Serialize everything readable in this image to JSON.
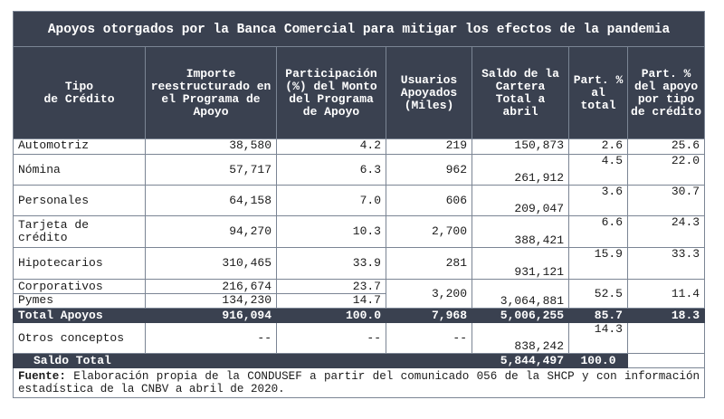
{
  "table": {
    "title": "Apoyos otorgados por la Banca Comercial para mitigar los efectos de la pandemia",
    "headers": {
      "tipo": "Tipo\nde Crédito",
      "importe": "Importe reestructurado en el Programa de Apoyo",
      "participacion": "Participación (%) del Monto del Programa de Apoyo",
      "usuarios": "Usuarios Apoyados (Miles)",
      "saldo": "Saldo de la Cartera Total a abril",
      "part_total": "Part. % al total",
      "part_apoyo": "Part. % del apoyo por tipo de crédito"
    },
    "rows": [
      {
        "tipo": "Automotriz",
        "importe": "38,580",
        "participacion": "4.2",
        "usuarios": "219",
        "saldo": "150,873",
        "part_total": "2.6",
        "part_apoyo": "25.6"
      },
      {
        "tipo": "Nómina",
        "importe": "57,717",
        "participacion": "6.3",
        "usuarios": "962",
        "saldo": "261,912",
        "part_total": "4.5",
        "part_apoyo": "22.0"
      },
      {
        "tipo": "Personales",
        "importe": "64,158",
        "participacion": "7.0",
        "usuarios": "606",
        "saldo": "209,047",
        "part_total": "3.6",
        "part_apoyo": "30.7"
      },
      {
        "tipo": "Tarjeta de crédito",
        "importe": "94,270",
        "participacion": "10.3",
        "usuarios": "2,700",
        "saldo": "388,421",
        "part_total": "6.6",
        "part_apoyo": "24.3"
      },
      {
        "tipo": "Hipotecarios",
        "importe": "310,465",
        "participacion": "33.9",
        "usuarios": "281",
        "saldo": "931,121",
        "part_total": "15.9",
        "part_apoyo": "33.3"
      }
    ],
    "corporativos": {
      "tipo": "Corporativos",
      "importe": "216,674",
      "participacion": "23.7"
    },
    "pymes": {
      "tipo": "Pymes",
      "importe": "134,230",
      "participacion": "14.7"
    },
    "corp_pymes_shared": {
      "usuarios": "3,200",
      "saldo": "3,064,881",
      "part_total": "52.5",
      "part_apoyo": "11.4"
    },
    "total_apoyos": {
      "tipo": "Total Apoyos",
      "importe": "916,094",
      "participacion": "100.0",
      "usuarios": "7,968",
      "saldo": "5,006,255",
      "part_total": "85.7",
      "part_apoyo": "18.3"
    },
    "otros": {
      "tipo": "Otros conceptos",
      "importe": "--",
      "participacion": "--",
      "usuarios": "--",
      "saldo": "838,242",
      "part_total": "14.3"
    },
    "saldo_total": {
      "tipo": "Saldo Total",
      "saldo": "5,844,497",
      "part_total": "100.0"
    },
    "footnote": {
      "label": "Fuente:",
      "text": " Elaboración propia de la CONDUSEF a partir del comunicado 056 de la SHCP y con información estadística de la CNBV a abril de 2020."
    }
  }
}
